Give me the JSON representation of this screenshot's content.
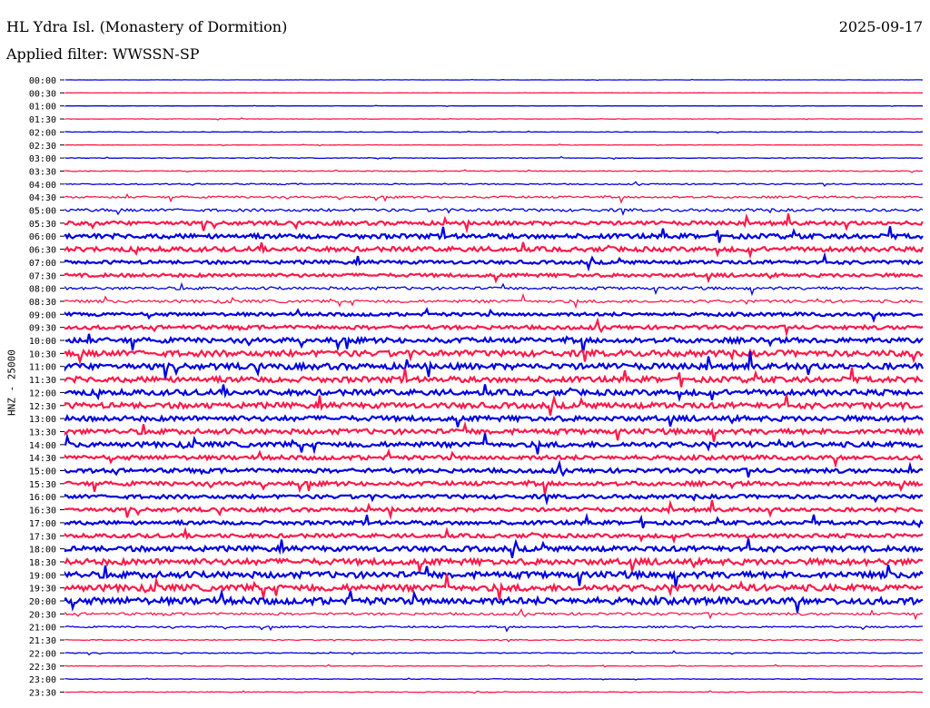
{
  "header": {
    "title": "HL Ydra Isl. (Monastery of Dormition)",
    "date": "2025-09-17",
    "filter": "Applied filter: WWSSN-SP"
  },
  "chart_data": {
    "type": "line",
    "title": "HL Ydra Isl. (Monastery of Dormition)",
    "ylabel": "HNZ - 25000",
    "row_labels": [
      "00:00",
      "00:30",
      "01:00",
      "01:30",
      "02:00",
      "02:30",
      "03:00",
      "03:30",
      "04:00",
      "04:30",
      "05:00",
      "05:30",
      "06:00",
      "06:30",
      "07:00",
      "07:30",
      "08:00",
      "08:30",
      "09:00",
      "09:30",
      "10:00",
      "10:30",
      "11:00",
      "11:30",
      "12:00",
      "12:30",
      "13:00",
      "13:30",
      "14:00",
      "14:30",
      "15:00",
      "15:30",
      "16:00",
      "16:30",
      "17:00",
      "17:30",
      "18:00",
      "18:30",
      "19:00",
      "19:30",
      "20:00",
      "20:30",
      "21:00",
      "21:30",
      "22:00",
      "22:30",
      "23:00",
      "23:30"
    ],
    "row_noise_level": [
      0.1,
      0.1,
      0.1,
      0.2,
      0.2,
      0.2,
      0.3,
      0.4,
      0.6,
      1.0,
      1.4,
      1.8,
      2.2,
      2.2,
      1.6,
      1.6,
      1.4,
      1.4,
      1.6,
      1.8,
      2.4,
      2.8,
      2.8,
      2.6,
      2.6,
      2.6,
      2.4,
      2.4,
      2.4,
      2.0,
      2.0,
      2.0,
      1.8,
      1.8,
      1.8,
      1.8,
      2.4,
      2.8,
      3.0,
      3.0,
      3.2,
      1.2,
      0.8,
      0.5,
      0.4,
      0.3,
      0.3,
      0.3
    ],
    "colors": {
      "odd": "#0000e0",
      "even": "#ff1a4a",
      "text": "#000000"
    }
  }
}
